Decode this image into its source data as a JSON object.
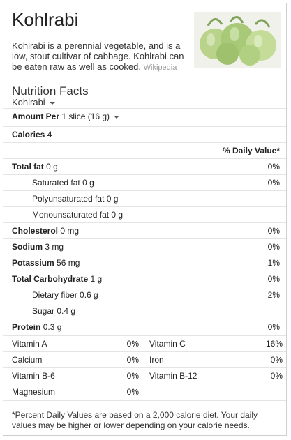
{
  "header": {
    "title": "Kohlrabi",
    "description": "Kohlrabi is a perennial vegetable, and is a low, stout cultivar of cabbage. Kohlrabi can be eaten raw as well as cooked.",
    "source": "Wikipedia"
  },
  "facts": {
    "heading": "Nutrition Facts",
    "item_select": "Kohlrabi",
    "amount_label": "Amount Per",
    "serving_select": "1 slice (16 g)",
    "calories_label": "Calories",
    "calories_value": "4",
    "dv_header": "% Daily Value*"
  },
  "nutrients": [
    {
      "label": "Total fat",
      "amount": "0 g",
      "dv": "0%"
    },
    {
      "label": "Saturated fat",
      "amount": "0 g",
      "dv": "0%"
    },
    {
      "label": "Polyunsaturated fat",
      "amount": "0 g",
      "dv": ""
    },
    {
      "label": "Monounsaturated fat",
      "amount": "0 g",
      "dv": ""
    },
    {
      "label": "Cholesterol",
      "amount": "0 mg",
      "dv": "0%"
    },
    {
      "label": "Sodium",
      "amount": "3 mg",
      "dv": "0%"
    },
    {
      "label": "Potassium",
      "amount": "56 mg",
      "dv": "1%"
    },
    {
      "label": "Total Carbohydrate",
      "amount": "1 g",
      "dv": "0%"
    },
    {
      "label": "Dietary fiber",
      "amount": "0.6 g",
      "dv": "2%"
    },
    {
      "label": "Sugar",
      "amount": "0.4 g",
      "dv": ""
    },
    {
      "label": "Protein",
      "amount": "0.3 g",
      "dv": "0%"
    }
  ],
  "vitamins": [
    {
      "left_label": "Vitamin A",
      "left_dv": "0%",
      "right_label": "Vitamin C",
      "right_dv": "16%"
    },
    {
      "left_label": "Calcium",
      "left_dv": "0%",
      "right_label": "Iron",
      "right_dv": "0%"
    },
    {
      "left_label": "Vitamin B-6",
      "left_dv": "0%",
      "right_label": "Vitamin B-12",
      "right_dv": "0%"
    },
    {
      "left_label": "Magnesium",
      "left_dv": "0%",
      "right_label": "",
      "right_dv": ""
    }
  ],
  "footer": "*Percent Daily Values are based on a 2,000 calorie diet. Your daily values may be higher or lower depending on your calorie needs."
}
